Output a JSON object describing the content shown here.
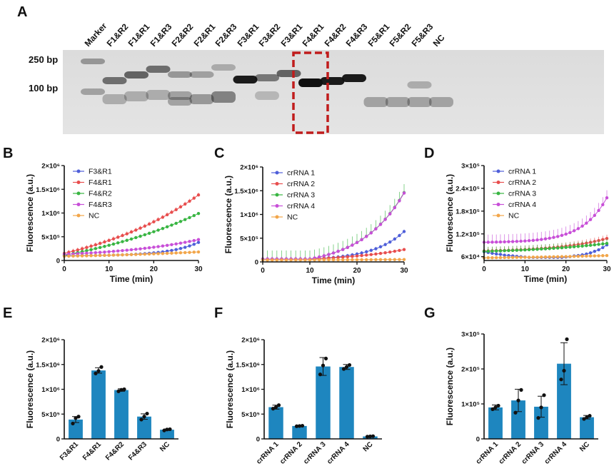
{
  "panel_letters": {
    "A": "A",
    "B": "B",
    "C": "C",
    "D": "D",
    "E": "E",
    "F": "F",
    "G": "G"
  },
  "gel": {
    "lanes": [
      "Marker",
      "F1&R2",
      "F1&R1",
      "F1&R3",
      "F2&R2",
      "F2&R1",
      "F2&R3",
      "F3&R1",
      "F3&R2",
      "F3&R1",
      "F4&R1",
      "F4&R2",
      "F4&R3",
      "F5&R1",
      "F5&R2",
      "F5&R3",
      "NC"
    ],
    "marker_sizes": [
      "250 bp",
      "100 bp"
    ]
  },
  "chart_data": [
    {
      "id": "B",
      "type": "line",
      "xlabel": "Time (min)",
      "ylabel": "Fluorescence (a.u.)",
      "xlim": [
        0,
        30
      ],
      "ylim": [
        0,
        2000000
      ],
      "xticks": [
        "0",
        "10",
        "20",
        "30"
      ],
      "yticks": [
        {
          "v": 0,
          "t": "0"
        },
        {
          "v": 500000,
          "t": "5×10⁵"
        },
        {
          "v": 1000000,
          "t": "1×10⁶"
        },
        {
          "v": 1500000,
          "t": "1.5×10⁶"
        },
        {
          "v": 2000000,
          "t": "2×10⁶"
        }
      ],
      "legend": "top-left",
      "series": [
        {
          "name": "F3&R1",
          "color": "#4f5fd9",
          "start": 100000,
          "end": 380000,
          "k": 4.5,
          "err": 25000
        },
        {
          "name": "F4&R1",
          "color": "#e84e4e",
          "start": 150000,
          "end": 1380000,
          "k": 1.1,
          "err": 50000
        },
        {
          "name": "F4&R2",
          "color": "#38b542",
          "start": 110000,
          "end": 990000,
          "k": 0.9,
          "err": 30000
        },
        {
          "name": "F4&R3",
          "color": "#c84fd8",
          "start": 130000,
          "end": 440000,
          "k": 1.6,
          "err": 25000
        },
        {
          "name": "NC",
          "color": "#f2a64a",
          "start": 90000,
          "end": 180000,
          "k": 1.0,
          "err": 10000
        }
      ]
    },
    {
      "id": "C",
      "type": "line",
      "xlabel": "Time (min)",
      "ylabel": "Fluorescence (a.u.)",
      "xlim": [
        0,
        30
      ],
      "ylim": [
        0,
        2000000
      ],
      "xticks": [
        "0",
        "10",
        "20",
        "30"
      ],
      "yticks": [
        {
          "v": 0,
          "t": "0"
        },
        {
          "v": 500000,
          "t": "5×10⁵"
        },
        {
          "v": 1000000,
          "t": "1×10⁶"
        },
        {
          "v": 1500000,
          "t": "1.5×10⁶"
        },
        {
          "v": 2000000,
          "t": "2×10⁶"
        }
      ],
      "legend": "top-left",
      "series": [
        {
          "name": "crRNA 1",
          "color": "#4f5fd9",
          "start": 60000,
          "end": 640000,
          "k": 3.0,
          "err": 40000,
          "onset": 10
        },
        {
          "name": "crRNA 2",
          "color": "#e84e4e",
          "start": 60000,
          "end": 260000,
          "k": 1.5,
          "err": 15000,
          "onset": 10
        },
        {
          "name": "crRNA 3",
          "color": "#38b542",
          "start": 60000,
          "end": 1460000,
          "k": 2.2,
          "err": 180000,
          "onset": 10
        },
        {
          "name": "crRNA 4",
          "color": "#c84fd8",
          "start": 60000,
          "end": 1450000,
          "k": 2.2,
          "err": 50000,
          "onset": 10
        },
        {
          "name": "NC",
          "color": "#f2a64a",
          "start": 40000,
          "end": 50000,
          "k": 1.0,
          "err": 5000
        }
      ]
    },
    {
      "id": "D",
      "type": "line",
      "xlabel": "Time (min)",
      "ylabel": "Fluorescence (a.u.)",
      "xlim": [
        0,
        30
      ],
      "ylim": [
        50000,
        300000
      ],
      "xticks": [
        "0",
        "10",
        "20",
        "30"
      ],
      "yticks": [
        {
          "v": 60000,
          "t": "6×10⁴"
        },
        {
          "v": 120000,
          "t": "1.2×10⁵"
        },
        {
          "v": 180000,
          "t": "1.8×10⁵"
        },
        {
          "v": 240000,
          "t": "2.4×10⁵"
        },
        {
          "v": 300000,
          "t": "3×10⁵"
        }
      ],
      "legend": "top-left",
      "series": [
        {
          "name": "crRNA 1",
          "color": "#4f5fd9",
          "values": [
            73000,
            71000,
            69000,
            67000,
            66000,
            64000,
            63000,
            62000,
            61000,
            60000,
            59000,
            58000,
            58000,
            58000,
            58000,
            58000,
            58000,
            58000,
            58000,
            58000,
            59000,
            60000,
            62000,
            63000,
            65000,
            67000,
            70000,
            74000,
            78000,
            84000,
            91000
          ],
          "err": 4000
        },
        {
          "name": "crRNA 2",
          "color": "#e84e4e",
          "start": 75000,
          "end": 108000,
          "k": 2.5,
          "err": 10000
        },
        {
          "name": "crRNA 3",
          "color": "#38b542",
          "start": 74000,
          "end": 95000,
          "k": 1.5,
          "err": 12000
        },
        {
          "name": "crRNA 4",
          "color": "#c84fd8",
          "start": 98000,
          "end": 215000,
          "k": 5.0,
          "err": 20000
        },
        {
          "name": "NC",
          "color": "#f2a64a",
          "start": 57000,
          "end": 63000,
          "k": 1.0,
          "err": 3000
        }
      ]
    },
    {
      "id": "E",
      "type": "bar",
      "ylabel": "Fluorescence (a.u.)",
      "ylim": [
        0,
        2000000
      ],
      "yticks": [
        {
          "v": 0,
          "t": "0"
        },
        {
          "v": 500000,
          "t": "5×10⁵"
        },
        {
          "v": 1000000,
          "t": "1×10⁶"
        },
        {
          "v": 1500000,
          "t": "1.5×10⁶"
        },
        {
          "v": 2000000,
          "t": "2×10⁶"
        }
      ],
      "categories": [
        "F3&R1",
        "F4&R1",
        "F4&R2",
        "F4&R3",
        "NC"
      ],
      "values": [
        390000,
        1380000,
        985000,
        450000,
        185000
      ],
      "errors": [
        60000,
        55000,
        25000,
        55000,
        15000
      ],
      "points": [
        [
          310000,
          420000,
          450000
        ],
        [
          1320000,
          1370000,
          1450000
        ],
        [
          960000,
          990000,
          1000000
        ],
        [
          390000,
          450000,
          510000
        ],
        [
          170000,
          190000,
          195000
        ]
      ],
      "color": "#1e86bf"
    },
    {
      "id": "F",
      "type": "bar",
      "ylabel": "Fluorescence (a.u.)",
      "ylim": [
        0,
        2000000
      ],
      "yticks": [
        {
          "v": 0,
          "t": "0"
        },
        {
          "v": 500000,
          "t": "5×10⁵"
        },
        {
          "v": 1000000,
          "t": "1×10⁶"
        },
        {
          "v": 1500000,
          "t": "1.5×10⁶"
        },
        {
          "v": 2000000,
          "t": "2×10⁶"
        }
      ],
      "categories": [
        "crRNA 1",
        "crRNA 2",
        "crRNA 3",
        "crRNA 4",
        "NC"
      ],
      "values": [
        640000,
        260000,
        1460000,
        1450000,
        50000
      ],
      "errors": [
        40000,
        15000,
        180000,
        50000,
        5000
      ],
      "points": [
        [
          610000,
          640000,
          680000
        ],
        [
          255000,
          260000,
          265000
        ],
        [
          1300000,
          1480000,
          1620000
        ],
        [
          1410000,
          1450000,
          1490000
        ],
        [
          45000,
          50000,
          55000
        ]
      ],
      "color": "#1e86bf"
    },
    {
      "id": "G",
      "type": "bar",
      "ylabel": "Fluorescence (a.u.)",
      "ylim": [
        0,
        300000
      ],
      "yticks": [
        {
          "v": 0,
          "t": "0"
        },
        {
          "v": 100000,
          "t": "1×10⁵"
        },
        {
          "v": 200000,
          "t": "2×10⁵"
        },
        {
          "v": 300000,
          "t": "3×10⁵"
        }
      ],
      "categories": [
        "crRNA 1",
        "crRNA 2",
        "crRNA 3",
        "crRNA 4",
        "NC"
      ],
      "values": [
        90000,
        110000,
        92000,
        215000,
        62000
      ],
      "errors": [
        7000,
        32000,
        30000,
        60000,
        5000
      ],
      "points": [
        [
          85000,
          90000,
          95000
        ],
        [
          75000,
          110000,
          140000
        ],
        [
          60000,
          90000,
          125000
        ],
        [
          170000,
          195000,
          285000
        ],
        [
          57000,
          62000,
          66000
        ]
      ],
      "color": "#1e86bf"
    }
  ]
}
